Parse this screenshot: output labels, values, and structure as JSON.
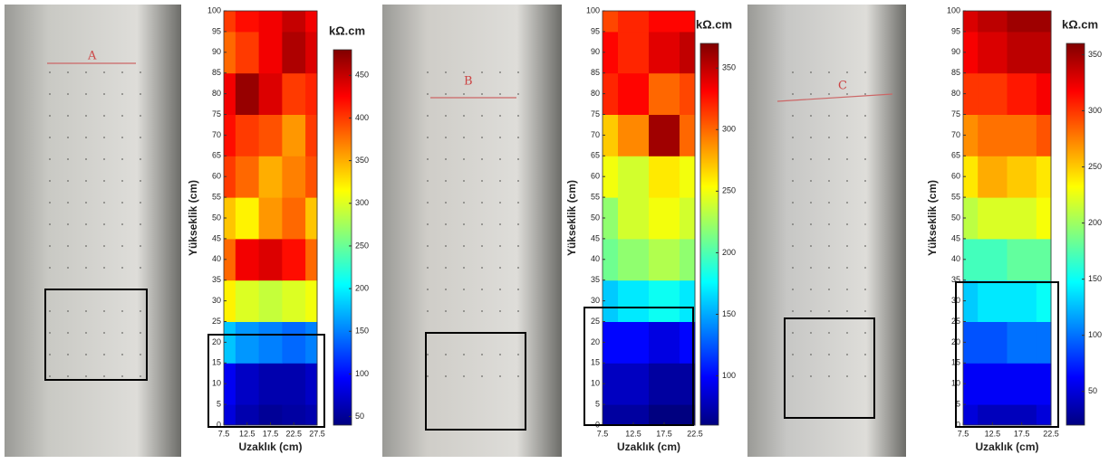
{
  "photos": [
    {
      "label": "A"
    },
    {
      "label": "B"
    },
    {
      "label": "C"
    }
  ],
  "chart_data": [
    {
      "type": "heatmap",
      "y_label": "Yükseklik (cm)",
      "x_label": "Uzaklık (cm)",
      "colorbar_label": "kΩ.cm",
      "x": [
        7.5,
        12.5,
        17.5,
        22.5,
        27.5
      ],
      "y": [
        0,
        10,
        20,
        30,
        40,
        50,
        60,
        70,
        80,
        90,
        100
      ],
      "xlim": [
        7.5,
        27.5
      ],
      "xticks": [
        7.5,
        12.5,
        17.5,
        22.5,
        27.5
      ],
      "ylim": [
        0,
        100
      ],
      "yticks": [
        0,
        5,
        10,
        15,
        20,
        25,
        30,
        35,
        40,
        45,
        50,
        55,
        60,
        65,
        70,
        75,
        80,
        85,
        90,
        95,
        100
      ],
      "clim": [
        40,
        480
      ],
      "cticks": [
        50,
        100,
        150,
        200,
        250,
        300,
        350,
        400,
        450
      ],
      "colormap": "jet",
      "values": [
        [
          80,
          60,
          50,
          55,
          60
        ],
        [
          90,
          70,
          60,
          60,
          70
        ],
        [
          180,
          160,
          150,
          140,
          150
        ],
        [
          320,
          300,
          290,
          300,
          310
        ],
        [
          380,
          430,
          440,
          420,
          380
        ],
        [
          340,
          320,
          360,
          380,
          340
        ],
        [
          400,
          380,
          350,
          370,
          390
        ],
        [
          420,
          400,
          390,
          360,
          400
        ],
        [
          430,
          470,
          440,
          400,
          410
        ],
        [
          380,
          400,
          430,
          460,
          440
        ],
        [
          400,
          420,
          430,
          450,
          430
        ]
      ]
    },
    {
      "type": "heatmap",
      "y_label": "Yükseklik (cm)",
      "x_label": "Uzaklık (cm)",
      "colorbar_label": "kΩ.cm",
      "x": [
        7.5,
        12.5,
        17.5,
        22.5
      ],
      "y": [
        0,
        10,
        20,
        30,
        40,
        50,
        60,
        70,
        80,
        90,
        100
      ],
      "xlim": [
        7.5,
        22.5
      ],
      "xticks": [
        7.5,
        12.5,
        17.5,
        22.5
      ],
      "ylim": [
        0,
        100
      ],
      "yticks": [
        0,
        5,
        10,
        15,
        20,
        25,
        30,
        35,
        40,
        45,
        50,
        55,
        60,
        65,
        70,
        75,
        80,
        85,
        90,
        95,
        100
      ],
      "clim": [
        60,
        370
      ],
      "cticks": [
        100,
        150,
        200,
        250,
        300,
        350
      ],
      "colormap": "jet",
      "values": [
        [
          70,
          70,
          60,
          60
        ],
        [
          80,
          80,
          70,
          70
        ],
        [
          100,
          100,
          90,
          100
        ],
        [
          160,
          170,
          180,
          170
        ],
        [
          210,
          220,
          230,
          220
        ],
        [
          220,
          240,
          250,
          240
        ],
        [
          250,
          240,
          260,
          250
        ],
        [
          270,
          290,
          360,
          300
        ],
        [
          320,
          330,
          300,
          310
        ],
        [
          330,
          320,
          340,
          350
        ],
        [
          310,
          320,
          330,
          330
        ]
      ]
    },
    {
      "type": "heatmap",
      "y_label": "Yükseklik (cm)",
      "x_label": "Uzaklık (cm)",
      "colorbar_label": "kΩ.cm",
      "x": [
        7.5,
        12.5,
        17.5,
        22.5
      ],
      "y": [
        0,
        10,
        20,
        30,
        40,
        50,
        60,
        70,
        80,
        90,
        100
      ],
      "xlim": [
        7.5,
        22.5
      ],
      "xticks": [
        7.5,
        12.5,
        17.5,
        22.5
      ],
      "ylim": [
        0,
        100
      ],
      "yticks": [
        0,
        5,
        10,
        15,
        20,
        25,
        30,
        35,
        40,
        45,
        50,
        55,
        60,
        65,
        70,
        75,
        80,
        85,
        90,
        95,
        100
      ],
      "clim": [
        20,
        360
      ],
      "cticks": [
        50,
        100,
        150,
        200,
        250,
        300,
        350
      ],
      "colormap": "jet",
      "values": [
        [
          50,
          40,
          40,
          50
        ],
        [
          60,
          60,
          60,
          60
        ],
        [
          90,
          90,
          100,
          100
        ],
        [
          130,
          140,
          140,
          150
        ],
        [
          170,
          170,
          180,
          180
        ],
        [
          210,
          220,
          220,
          230
        ],
        [
          240,
          260,
          250,
          240
        ],
        [
          270,
          280,
          280,
          290
        ],
        [
          300,
          300,
          310,
          320
        ],
        [
          320,
          330,
          340,
          340
        ],
        [
          330,
          340,
          350,
          350
        ]
      ]
    }
  ]
}
